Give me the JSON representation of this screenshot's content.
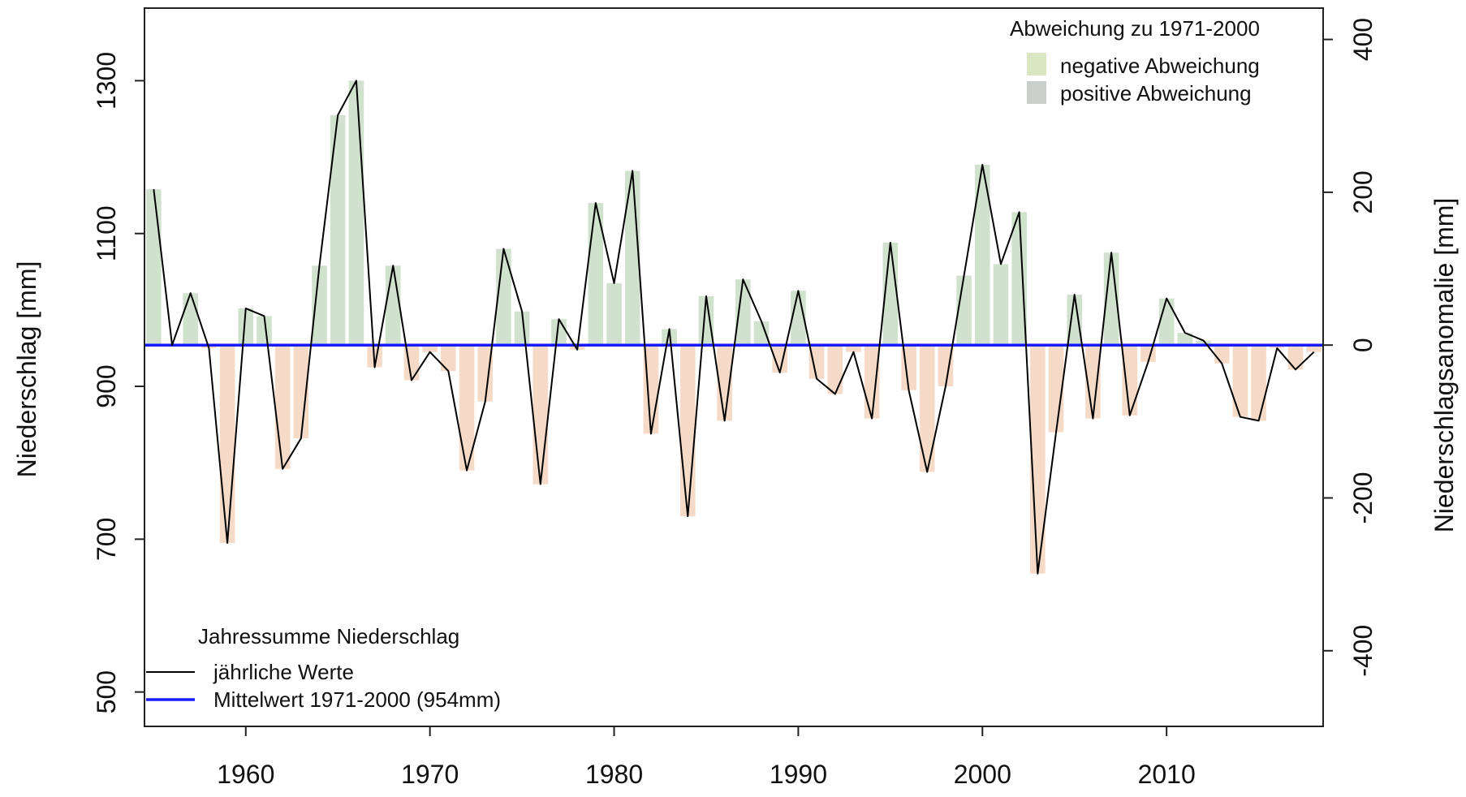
{
  "chart_data": {
    "type": "bar",
    "x": [
      1955,
      1956,
      1957,
      1958,
      1959,
      1960,
      1961,
      1962,
      1963,
      1964,
      1965,
      1966,
      1967,
      1968,
      1969,
      1970,
      1971,
      1972,
      1973,
      1974,
      1975,
      1976,
      1977,
      1978,
      1979,
      1980,
      1981,
      1982,
      1983,
      1984,
      1985,
      1986,
      1987,
      1988,
      1989,
      1990,
      1991,
      1992,
      1993,
      1994,
      1995,
      1996,
      1997,
      1998,
      1999,
      2000,
      2001,
      2002,
      2003,
      2004,
      2005,
      2006,
      2007,
      2008,
      2009,
      2010,
      2011,
      2012,
      2013,
      2014,
      2015,
      2016,
      2017,
      2018
    ],
    "values": [
      1158,
      954,
      1022,
      950,
      695,
      1002,
      992,
      792,
      832,
      1058,
      1255,
      1300,
      925,
      1058,
      908,
      945,
      920,
      790,
      880,
      1080,
      998,
      772,
      988,
      948,
      1140,
      1035,
      1182,
      838,
      975,
      730,
      1018,
      855,
      1040,
      985,
      918,
      1025,
      910,
      890,
      945,
      858,
      1088,
      895,
      788,
      900,
      1045,
      1190,
      1060,
      1128,
      655,
      840,
      1020,
      858,
      1075,
      862,
      932,
      1015,
      970,
      960,
      930,
      860,
      855,
      950,
      922,
      945
    ],
    "mean": 954,
    "xticks": [
      1960,
      1970,
      1980,
      1990,
      2000,
      2010
    ],
    "y_left": {
      "label": "Niederschlag [mm]",
      "ylim": [
        455,
        1395
      ],
      "ticks": [
        500,
        700,
        900,
        1100,
        1300
      ]
    },
    "y_right": {
      "label": "Niederschlagsanomalie [mm]",
      "ticks": [
        -400,
        -200,
        0,
        200,
        400
      ]
    },
    "xlim": [
      1954.5,
      2018.5
    ],
    "colors": {
      "line": "#000000",
      "mean_line": "#1a1aff",
      "positive_fill": "#c8ddc4",
      "negative_fill": "#f3d4bd"
    },
    "legend_top": {
      "title": "Abweichung zu 1971-2000",
      "items": [
        {
          "label": "negative Abweichung",
          "color": "#d8e6c2"
        },
        {
          "label": "positive Abweichung",
          "color": "#c9cfcb"
        }
      ]
    },
    "legend_bottom": {
      "title": "Jahressumme Niederschlag",
      "items": [
        {
          "label": "jährliche Werte",
          "color": "#000000"
        },
        {
          "label": "Mittelwert 1971-2000 (954mm)",
          "color": "#1a1aff"
        }
      ]
    }
  }
}
